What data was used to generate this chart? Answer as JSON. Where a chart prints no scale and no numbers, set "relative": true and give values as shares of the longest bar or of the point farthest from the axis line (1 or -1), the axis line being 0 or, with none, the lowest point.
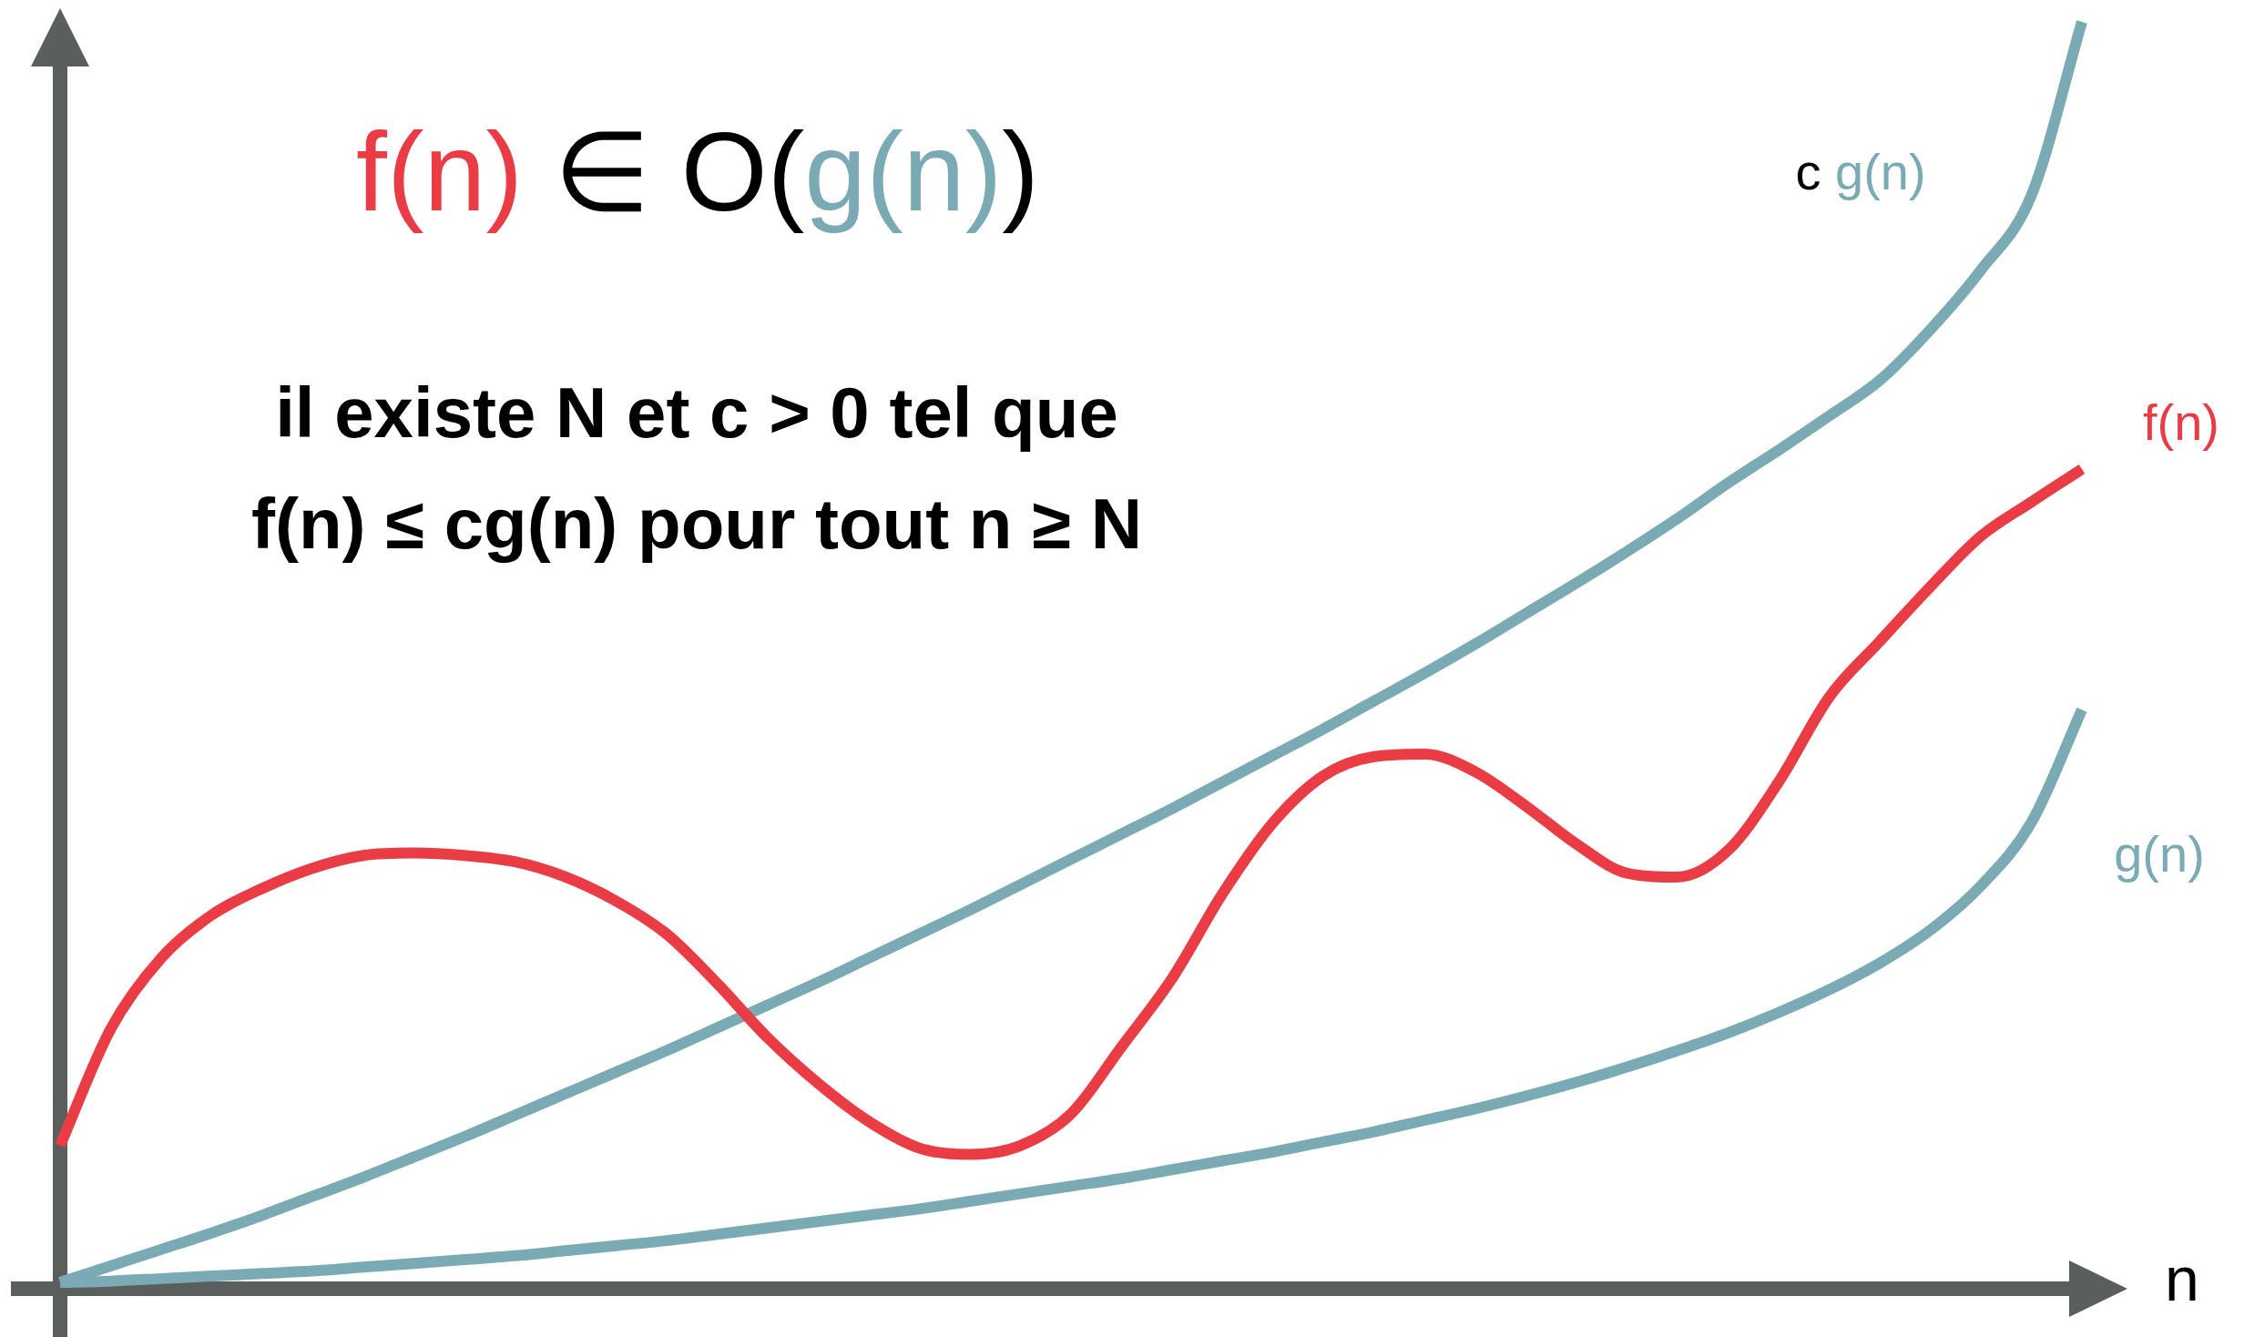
{
  "chart_data": {
    "type": "line",
    "title": "f(n) ∈ O(g(n))",
    "xlabel": "n",
    "annotations": [
      "il existe N et c > 0 tel que",
      "f(n) ≤ cg(n) pour tout n ≥ N"
    ],
    "categories": [
      null,
      null,
      null,
      null,
      null,
      null,
      null,
      null,
      null,
      null,
      null,
      null,
      null,
      null,
      null,
      null,
      null,
      null,
      null,
      null,
      null,
      null,
      null,
      null,
      null,
      null,
      null,
      null,
      null,
      null,
      null,
      null,
      null,
      null,
      null,
      null,
      null,
      null,
      null,
      null,
      null
    ],
    "relative": true,
    "tick_labels": false,
    "marker": "none",
    "series": [
      {
        "name": "c g(n)",
        "color": "#7aaab3",
        "values": [
          0.005,
          0.018,
          0.031,
          0.044,
          0.058,
          0.073,
          0.088,
          0.104,
          0.12,
          0.137,
          0.154,
          0.171,
          0.188,
          0.206,
          0.224,
          0.242,
          0.261,
          0.28,
          0.299,
          0.319,
          0.339,
          0.359,
          0.379,
          0.4,
          0.421,
          0.442,
          0.464,
          0.486,
          0.509,
          0.533,
          0.557,
          0.582,
          0.608,
          0.636,
          0.662,
          0.689,
          0.717,
          0.757,
          0.804,
          0.863,
          1
        ]
      },
      {
        "name": "f(n)",
        "color": "#e93c45",
        "values": [
          0.113,
          0.205,
          0.261,
          0.295,
          0.316,
          0.332,
          0.342,
          0.344,
          0.342,
          0.337,
          0.325,
          0.306,
          0.28,
          0.241,
          0.198,
          0.162,
          0.132,
          0.111,
          0.106,
          0.113,
          0.138,
          0.191,
          0.245,
          0.312,
          0.368,
          0.405,
          0.42,
          0.422,
          0.408,
          0.381,
          0.351,
          0.328,
          0.325,
          0.346,
          0.4,
          0.467,
          0.511,
          0.554,
          0.594,
          0.621,
          0.647
        ]
      },
      {
        "name": "g(n)",
        "color": "#7aaab3",
        "values": [
          0.005,
          0.006,
          0.008,
          0.01,
          0.012,
          0.014,
          0.017,
          0.02,
          0.023,
          0.026,
          0.03,
          0.034,
          0.038,
          0.043,
          0.048,
          0.053,
          0.058,
          0.063,
          0.069,
          0.075,
          0.081,
          0.087,
          0.094,
          0.101,
          0.108,
          0.116,
          0.124,
          0.133,
          0.142,
          0.152,
          0.163,
          0.175,
          0.188,
          0.202,
          0.218,
          0.236,
          0.257,
          0.283,
          0.318,
          0.368,
          0.457
        ]
      }
    ]
  }
}
